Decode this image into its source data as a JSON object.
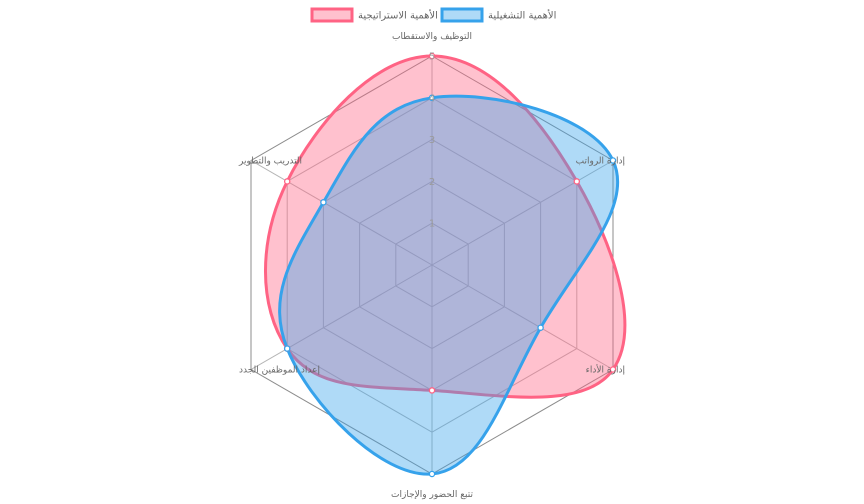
{
  "chart_data": {
    "type": "radar",
    "title": "",
    "axes": [
      "التوظيف والاستقطاب",
      "إدارة الرواتب",
      "إدارة الأداء",
      "تتبع الحضور والإجازات",
      "إعداد الموظفين الجدد",
      "التدريب والتطوير"
    ],
    "ticks": [
      "1",
      "2",
      "3",
      "4",
      "5"
    ],
    "rlim": [
      0,
      5
    ],
    "grid": true,
    "legend_position": "top",
    "series": [
      {
        "name": "الأهمية الاستراتيجية",
        "values": [
          5,
          4,
          5,
          3,
          4,
          4
        ],
        "stroke": "#ff6384",
        "fill": "rgba(255,99,132,0.4)"
      },
      {
        "name": "الأهمية التشغيلية",
        "values": [
          4,
          5,
          3,
          5,
          4,
          3
        ],
        "stroke": "#36a2eb",
        "fill": "rgba(54,162,235,0.4)"
      }
    ]
  }
}
